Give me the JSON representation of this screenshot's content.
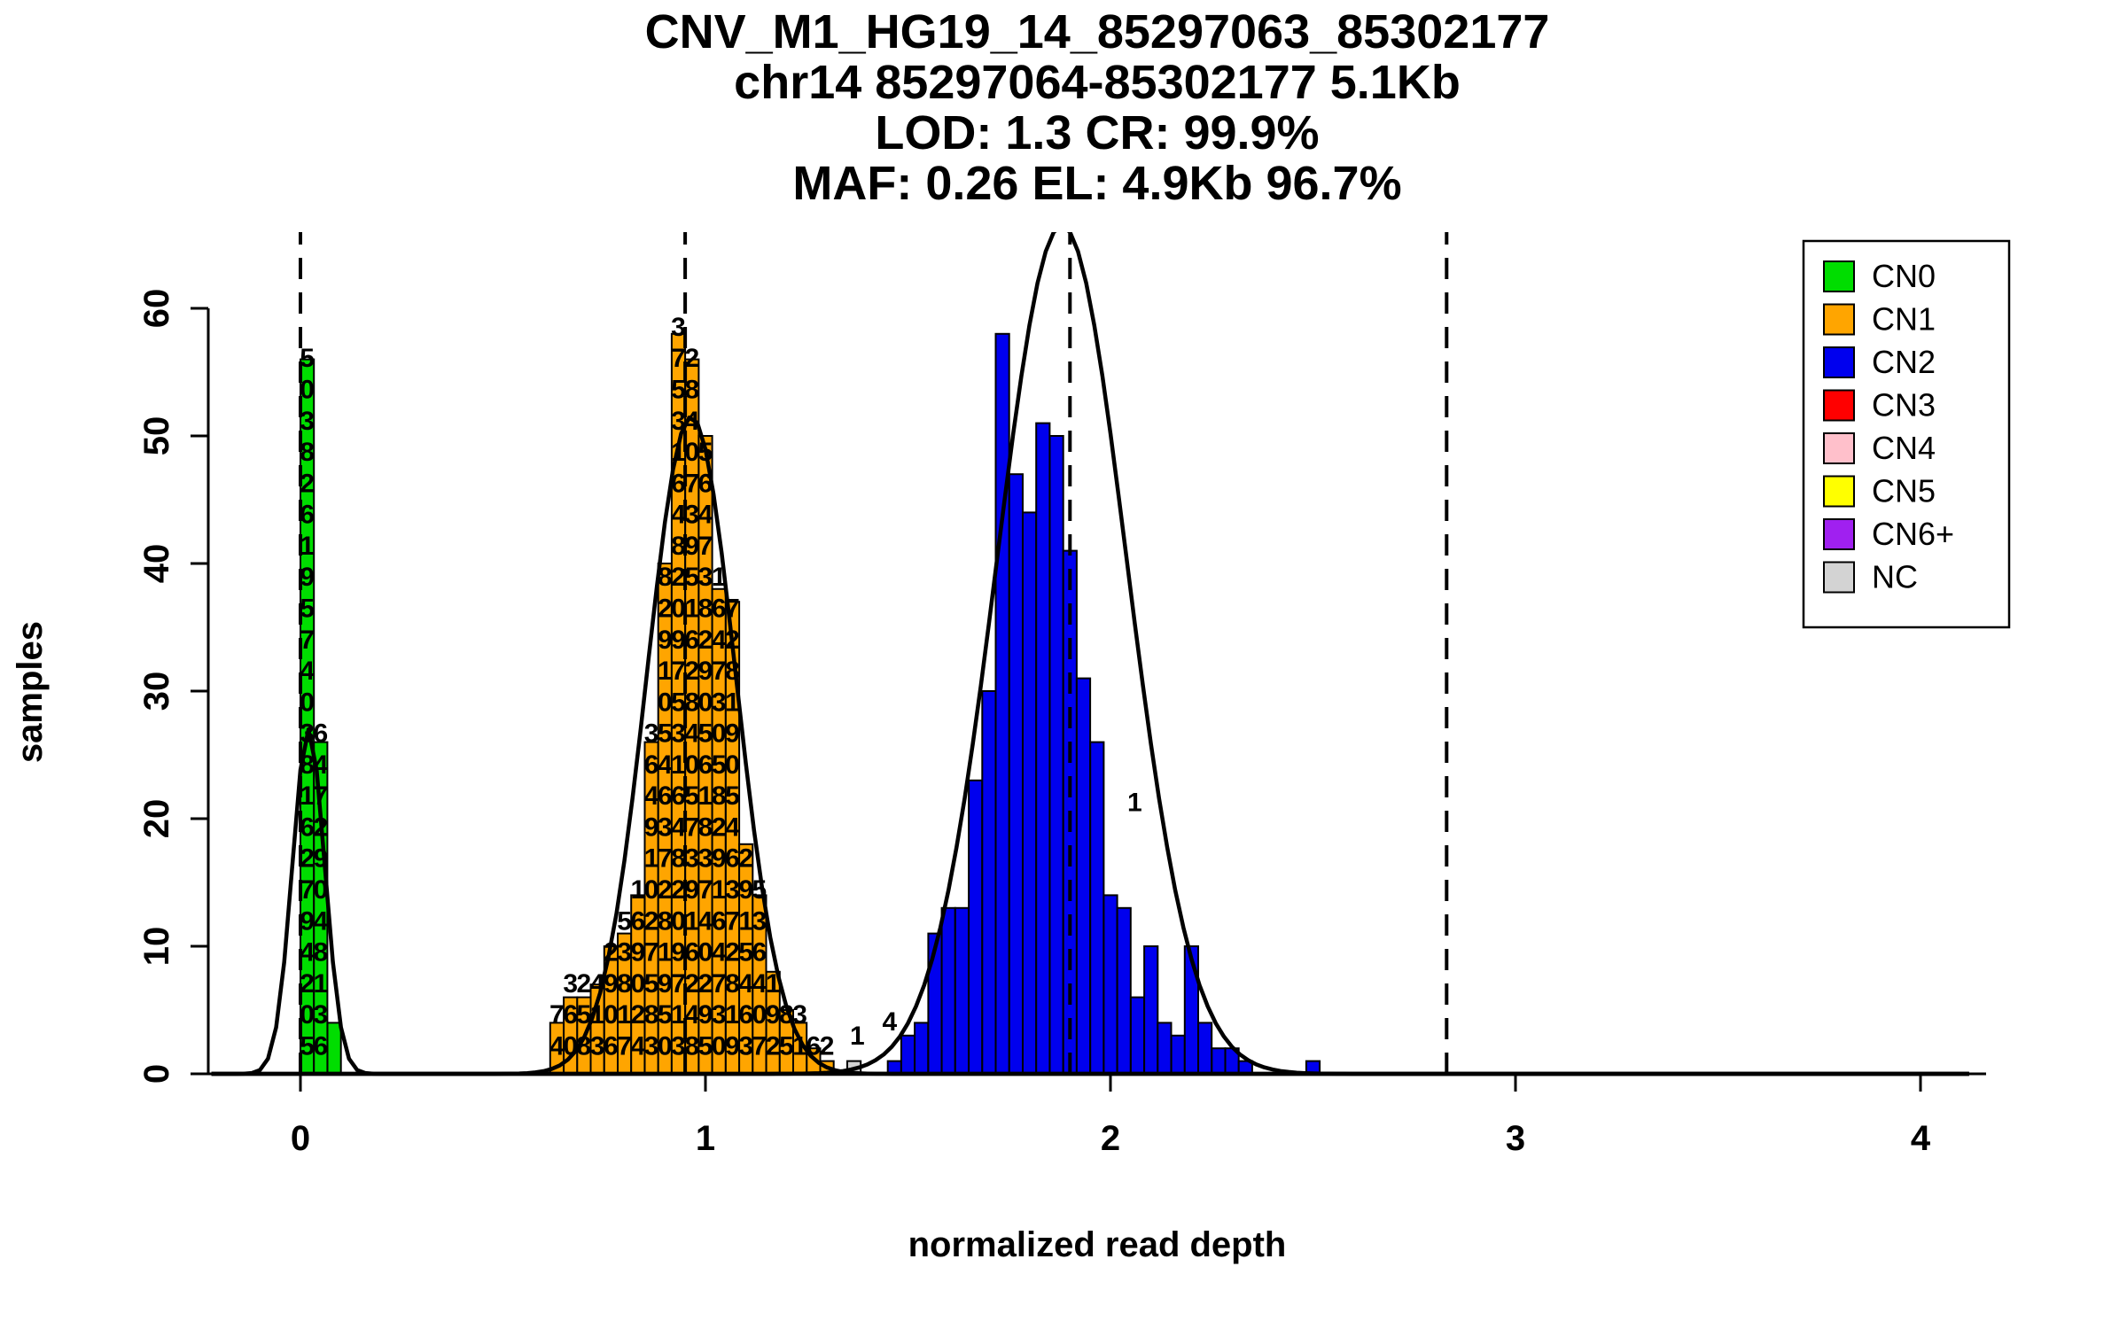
{
  "title": {
    "lines": [
      "CNV_M1_HG19_14_85297063_85302177",
      "chr14 85297064-85302177 5.1Kb",
      "LOD: 1.3 CR: 99.9%",
      "MAF: 0.26 EL: 4.9Kb 96.7%"
    ]
  },
  "x_axis": {
    "label": "normalized read depth",
    "ticks": [
      0,
      1,
      2,
      3,
      4
    ]
  },
  "y_axis": {
    "label": "samples",
    "ticks": [
      0,
      10,
      20,
      30,
      40,
      50,
      60
    ]
  },
  "palette": {
    "CN0": "#00DD00",
    "CN1": "#FFA500",
    "CN2": "#0000EE",
    "CN3": "#FF0000",
    "CN4": "#FFC0CB",
    "CN5": "#FFFF00",
    "CN6+": "#A020F0",
    "NC": "#D3D3D3"
  },
  "legend": {
    "items": [
      {
        "label": "CN0",
        "color": "#00DD00"
      },
      {
        "label": "CN1",
        "color": "#FFA500"
      },
      {
        "label": "CN2",
        "color": "#0000EE"
      },
      {
        "label": "CN3",
        "color": "#FF0000"
      },
      {
        "label": "CN4",
        "color": "#FFC0CB"
      },
      {
        "label": "CN5",
        "color": "#FFFF00"
      },
      {
        "label": "CN6+",
        "color": "#A020F0"
      },
      {
        "label": "NC",
        "color": "#D3D3D3"
      }
    ]
  },
  "chart_data": {
    "type": "bar",
    "title": "CNV_M1_HG19_14_85297063_85302177",
    "xlabel": "normalized read depth",
    "ylabel": "samples",
    "xlim": [
      -0.25,
      4.2
    ],
    "ylim": [
      0,
      66
    ],
    "bin_width": 0.0333,
    "bars": [
      {
        "x": 0.0167,
        "h": 56,
        "c": "CN0"
      },
      {
        "x": 0.05,
        "h": 26,
        "c": "CN0"
      },
      {
        "x": 0.0833,
        "h": 4,
        "c": "CN0"
      },
      {
        "x": 0.6333,
        "h": 4,
        "c": "CN1"
      },
      {
        "x": 0.6667,
        "h": 6,
        "c": "CN1"
      },
      {
        "x": 0.7,
        "h": 6,
        "c": "CN1"
      },
      {
        "x": 0.7333,
        "h": 7,
        "c": "CN1"
      },
      {
        "x": 0.7667,
        "h": 10,
        "c": "CN1"
      },
      {
        "x": 0.8,
        "h": 11,
        "c": "CN1"
      },
      {
        "x": 0.8333,
        "h": 14,
        "c": "CN1"
      },
      {
        "x": 0.8667,
        "h": 26,
        "c": "CN1"
      },
      {
        "x": 0.9,
        "h": 40,
        "c": "CN1"
      },
      {
        "x": 0.9333,
        "h": 58,
        "c": "CN1"
      },
      {
        "x": 0.9667,
        "h": 56,
        "c": "CN1"
      },
      {
        "x": 1.0,
        "h": 50,
        "c": "CN1"
      },
      {
        "x": 1.0333,
        "h": 38,
        "c": "CN1"
      },
      {
        "x": 1.0667,
        "h": 37,
        "c": "CN1"
      },
      {
        "x": 1.1,
        "h": 18,
        "c": "CN1"
      },
      {
        "x": 1.1333,
        "h": 14,
        "c": "CN1"
      },
      {
        "x": 1.1667,
        "h": 8,
        "c": "CN1"
      },
      {
        "x": 1.2,
        "h": 5,
        "c": "CN1"
      },
      {
        "x": 1.2333,
        "h": 4,
        "c": "CN1"
      },
      {
        "x": 1.2667,
        "h": 2,
        "c": "CN1"
      },
      {
        "x": 1.3,
        "h": 1,
        "c": "CN1"
      },
      {
        "x": 1.3667,
        "h": 1,
        "c": "NC"
      },
      {
        "x": 1.4667,
        "h": 1,
        "c": "CN2"
      },
      {
        "x": 1.5,
        "h": 3,
        "c": "CN2"
      },
      {
        "x": 1.5333,
        "h": 4,
        "c": "CN2"
      },
      {
        "x": 1.5667,
        "h": 11,
        "c": "CN2"
      },
      {
        "x": 1.6,
        "h": 13,
        "c": "CN2"
      },
      {
        "x": 1.6333,
        "h": 13,
        "c": "CN2"
      },
      {
        "x": 1.6667,
        "h": 23,
        "c": "CN2"
      },
      {
        "x": 1.7,
        "h": 30,
        "c": "CN2"
      },
      {
        "x": 1.7333,
        "h": 58,
        "c": "CN2"
      },
      {
        "x": 1.7667,
        "h": 47,
        "c": "CN2"
      },
      {
        "x": 1.8,
        "h": 44,
        "c": "CN2"
      },
      {
        "x": 1.8333,
        "h": 51,
        "c": "CN2"
      },
      {
        "x": 1.8667,
        "h": 50,
        "c": "CN2"
      },
      {
        "x": 1.9,
        "h": 41,
        "c": "CN2"
      },
      {
        "x": 1.9333,
        "h": 31,
        "c": "CN2"
      },
      {
        "x": 1.9667,
        "h": 26,
        "c": "CN2"
      },
      {
        "x": 2.0,
        "h": 14,
        "c": "CN2"
      },
      {
        "x": 2.0333,
        "h": 13,
        "c": "CN2"
      },
      {
        "x": 2.0667,
        "h": 6,
        "c": "CN2"
      },
      {
        "x": 2.1,
        "h": 10,
        "c": "CN2"
      },
      {
        "x": 2.1333,
        "h": 4,
        "c": "CN2"
      },
      {
        "x": 2.1667,
        "h": 3,
        "c": "CN2"
      },
      {
        "x": 2.2,
        "h": 10,
        "c": "CN2"
      },
      {
        "x": 2.2333,
        "h": 4,
        "c": "CN2"
      },
      {
        "x": 2.2667,
        "h": 2,
        "c": "CN2"
      },
      {
        "x": 2.3,
        "h": 2,
        "c": "CN2"
      },
      {
        "x": 2.3333,
        "h": 1,
        "c": "CN2"
      },
      {
        "x": 2.5,
        "h": 1,
        "c": "CN2"
      }
    ],
    "curves": [
      {
        "mean": 0.02,
        "sd": 0.04,
        "peak": 27
      },
      {
        "mean": 0.965,
        "sd": 0.11,
        "peak": 51.5
      },
      {
        "mean": 1.88,
        "sd": 0.16,
        "peak": 66.5
      }
    ],
    "dashed_lines": [
      0.0,
      0.95,
      1.9,
      2.83
    ],
    "digit_columns": [
      {
        "x": 0.0167,
        "digits": "50249726183047591628305"
      },
      {
        "x": 0.05,
        "digits": "63184092746"
      },
      {
        "x": 0.6333,
        "digits": "47"
      },
      {
        "x": 0.6667,
        "digits": "063"
      },
      {
        "x": 0.7,
        "digits": "852"
      },
      {
        "x": 0.7333,
        "digits": "314"
      },
      {
        "x": 0.7667,
        "digits": "6092"
      },
      {
        "x": 0.8,
        "digits": "71835"
      },
      {
        "x": 0.8333,
        "digits": "420961"
      },
      {
        "x": 0.8667,
        "digits": "38572019463"
      },
      {
        "x": 0.9,
        "digits": "0591827364501928"
      },
      {
        "x": 0.9333,
        "digits": "317902846135790284613573"
      },
      {
        "x": 0.9667,
        "digits": "84261937504826159370482"
      },
      {
        "x": 1.0,
        "digits": "59204738165092837465"
      },
      {
        "x": 1.0333,
        "digits": "0374619285037461"
      },
      {
        "x": 1.0667,
        "digits": "918273645091827"
      },
      {
        "x": 1.1,
        "digits": "3645192"
      },
      {
        "x": 1.1333,
        "digits": "704635"
      },
      {
        "x": 1.1667,
        "digits": "291"
      },
      {
        "x": 1.2,
        "digits": "58"
      },
      {
        "x": 1.2333,
        "digits": "13"
      },
      {
        "x": 1.2667,
        "digits": "6"
      },
      {
        "x": 1.3,
        "digits": "2"
      }
    ],
    "annotations": [
      {
        "x": 1.375,
        "y": 2.3,
        "text": "1"
      },
      {
        "x": 1.455,
        "y": 3.4,
        "text": "4"
      },
      {
        "x": 2.06,
        "y": 20.6,
        "text": "1"
      }
    ]
  }
}
